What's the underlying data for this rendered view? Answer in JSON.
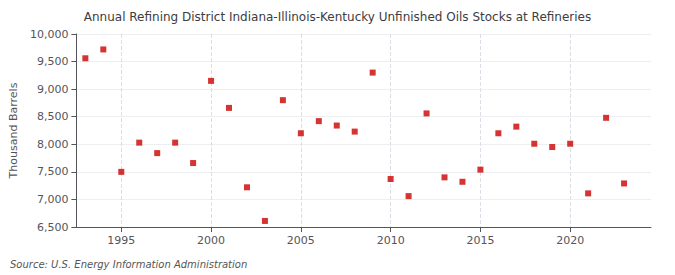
{
  "chart_data": {
    "type": "scatter",
    "title": "Annual Refining District Indiana-Illinois-Kentucky Unfinished Oils Stocks at Refineries",
    "ylabel": "Thousand Barrels",
    "annotation": "Source: U.S. Energy Information Administration",
    "x": [
      1993,
      1994,
      1995,
      1996,
      1997,
      1998,
      1999,
      2000,
      2001,
      2002,
      2003,
      2004,
      2005,
      2006,
      2007,
      2008,
      2009,
      2010,
      2011,
      2012,
      2013,
      2014,
      2015,
      2016,
      2017,
      2018,
      2019,
      2020,
      2021,
      2022,
      2023
    ],
    "values": [
      9560,
      9720,
      7500,
      8030,
      7840,
      8030,
      7660,
      9150,
      8660,
      7220,
      6610,
      8800,
      8200,
      8420,
      8340,
      8230,
      9300,
      7370,
      7060,
      8560,
      7400,
      7320,
      7540,
      8200,
      8320,
      8010,
      7950,
      8010,
      7110,
      8480,
      7290
    ],
    "color": "#cc0000",
    "marker": "square",
    "xlim": [
      1992.5,
      2024.5
    ],
    "xticks": [
      1995,
      2000,
      2005,
      2010,
      2015,
      2020
    ],
    "ylim": [
      6500,
      10000
    ],
    "yticks": [
      {
        "value": 6500,
        "label": "6,500"
      },
      {
        "value": 7000,
        "label": "7,000"
      },
      {
        "value": 7500,
        "label": "7,500"
      },
      {
        "value": 8000,
        "label": "8,000"
      },
      {
        "value": 8500,
        "label": "8,500"
      },
      {
        "value": 9000,
        "label": "9,000"
      },
      {
        "value": 9500,
        "label": "9,500"
      },
      {
        "value": 10000,
        "label": "10,000"
      }
    ],
    "grid": true
  }
}
